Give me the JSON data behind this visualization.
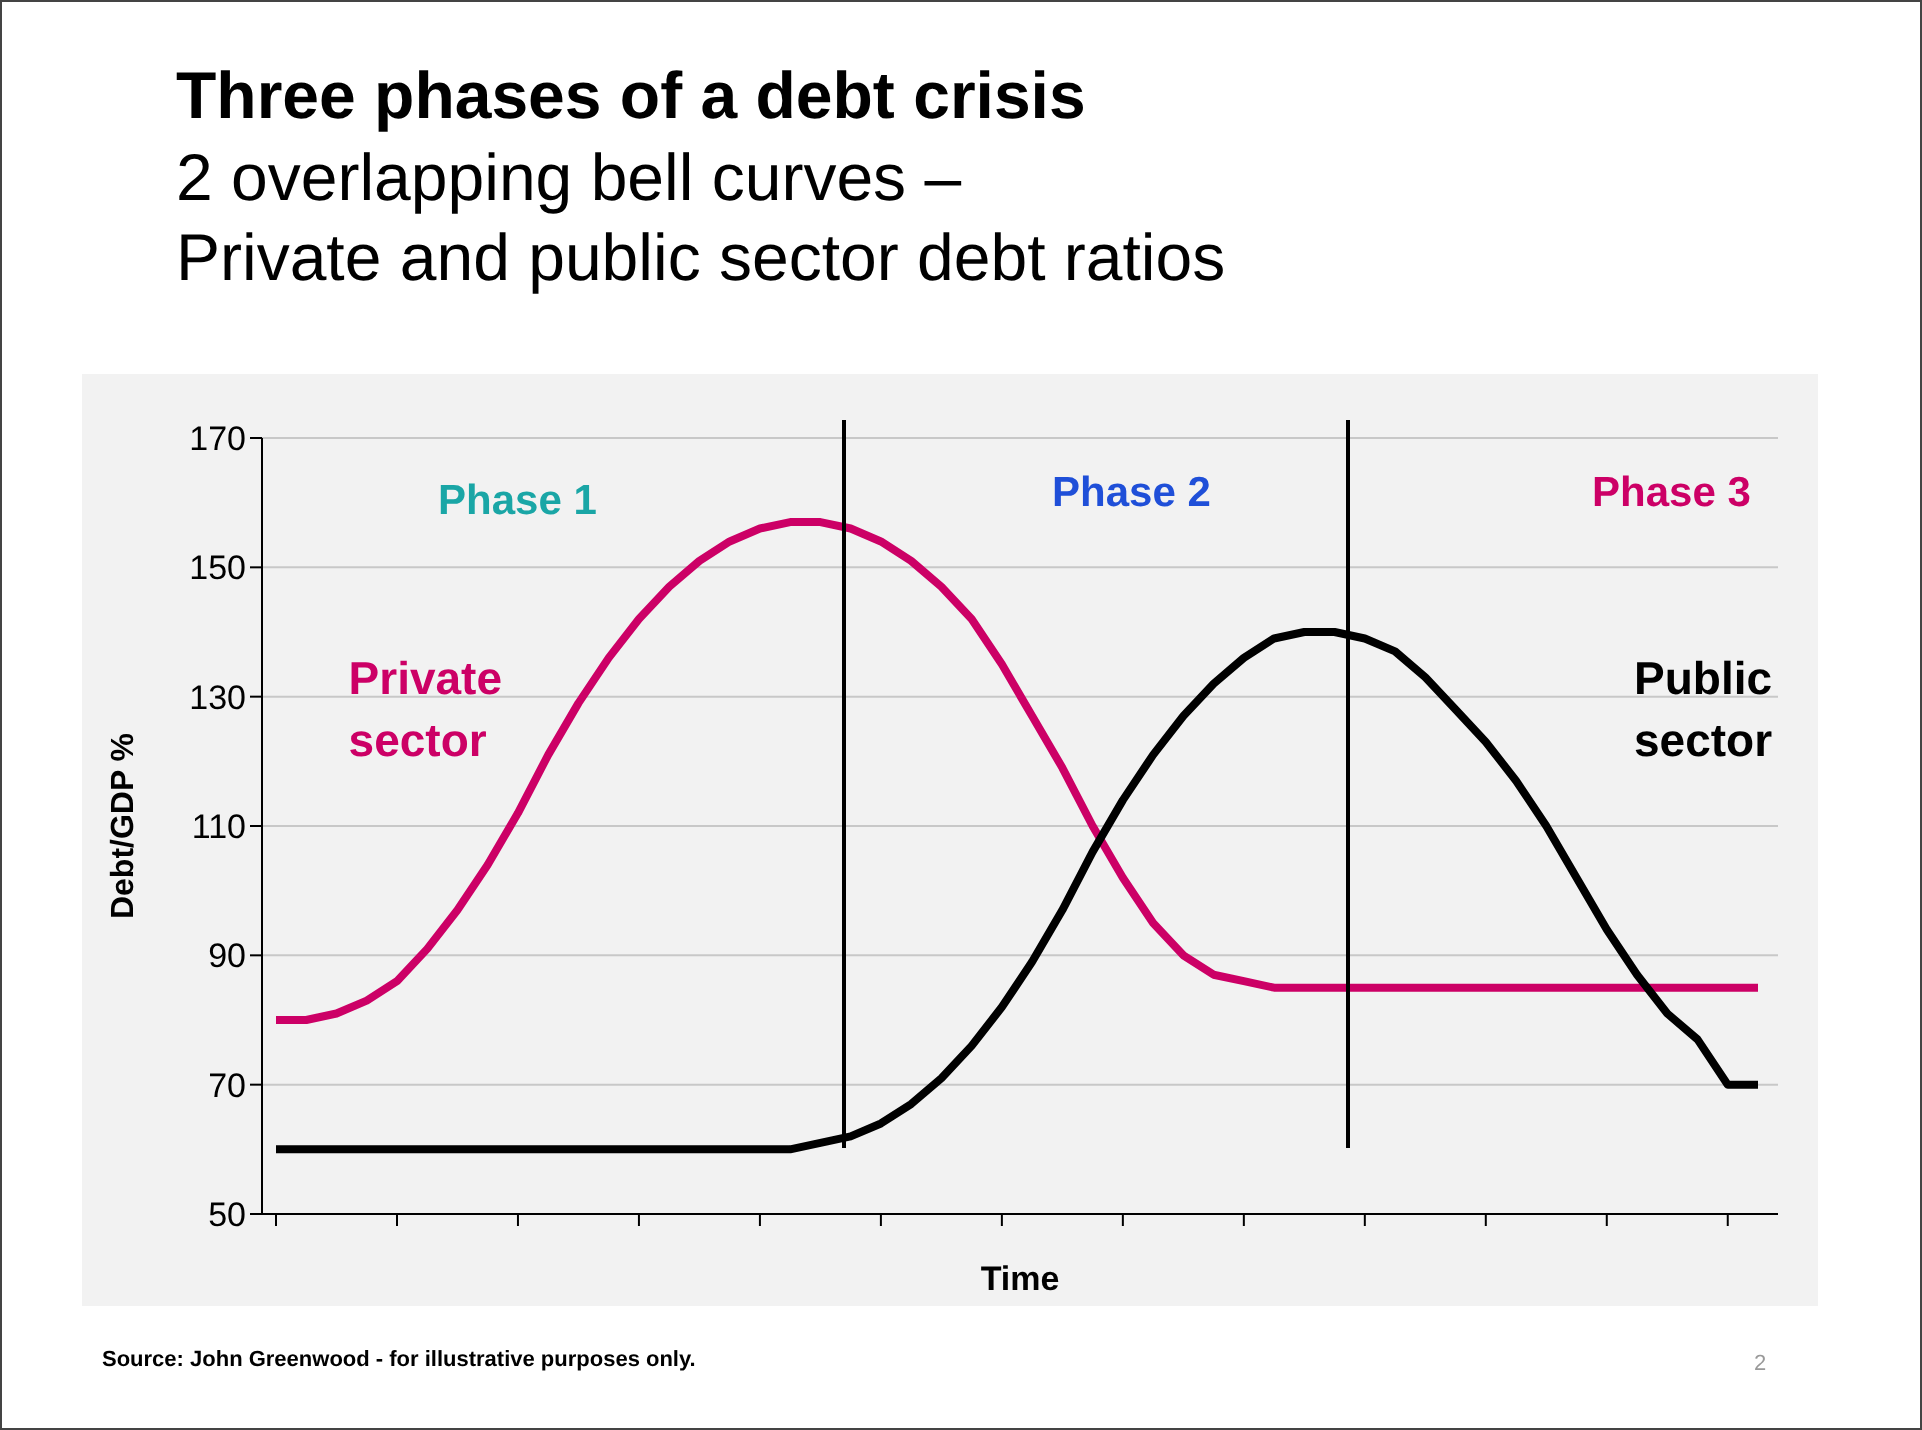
{
  "chart_data": {
    "type": "line",
    "title": "Three phases of a debt crisis",
    "subtitle": "2 overlapping bell curves –\nPrivate and public sector debt ratios",
    "xlabel": "Time",
    "ylabel": "Debt/GDP %",
    "categories": [
      null,
      null,
      null,
      null,
      null,
      null,
      null,
      null,
      null,
      null,
      null,
      null,
      null,
      null,
      null,
      null,
      null,
      null,
      null,
      null,
      null,
      null,
      null,
      null,
      null,
      null,
      null,
      null,
      null,
      null,
      null,
      null,
      null,
      null,
      null,
      null,
      null,
      null,
      null,
      null,
      null,
      null,
      null,
      null,
      null,
      null,
      null,
      null,
      null,
      null
    ],
    "series": [
      {
        "name": "Private sector",
        "color": "#cc0066",
        "values": [
          80,
          80,
          81,
          83,
          86,
          91,
          97,
          104,
          112,
          121,
          129,
          136,
          142,
          147,
          151,
          154,
          156,
          157,
          157,
          156,
          154,
          151,
          147,
          142,
          135,
          127,
          119,
          110,
          102,
          95,
          90,
          87,
          86,
          85,
          85,
          85,
          85,
          85,
          85,
          85,
          85,
          85,
          85,
          85,
          85,
          85,
          85,
          85,
          85,
          85
        ]
      },
      {
        "name": "Public sector",
        "color": "#000000",
        "values": [
          60,
          60,
          60,
          60,
          60,
          60,
          60,
          60,
          60,
          60,
          60,
          60,
          60,
          60,
          60,
          60,
          60,
          60,
          61,
          62,
          64,
          67,
          71,
          76,
          82,
          89,
          97,
          106,
          114,
          121,
          127,
          132,
          136,
          139,
          140,
          140,
          139,
          137,
          133,
          128,
          123,
          117,
          110,
          102,
          94,
          87,
          81,
          77,
          70,
          70
        ]
      }
    ],
    "ylim": [
      50,
      170
    ],
    "yticks": [
      50,
      70,
      90,
      110,
      130,
      150,
      170
    ],
    "grid": "y",
    "marker": "none",
    "line_style": "solid",
    "annotations": [
      "Phase 1",
      "Phase 2",
      "Phase 3",
      "Source: John Greenwood - for illustrative purposes only.",
      "2"
    ]
  }
}
